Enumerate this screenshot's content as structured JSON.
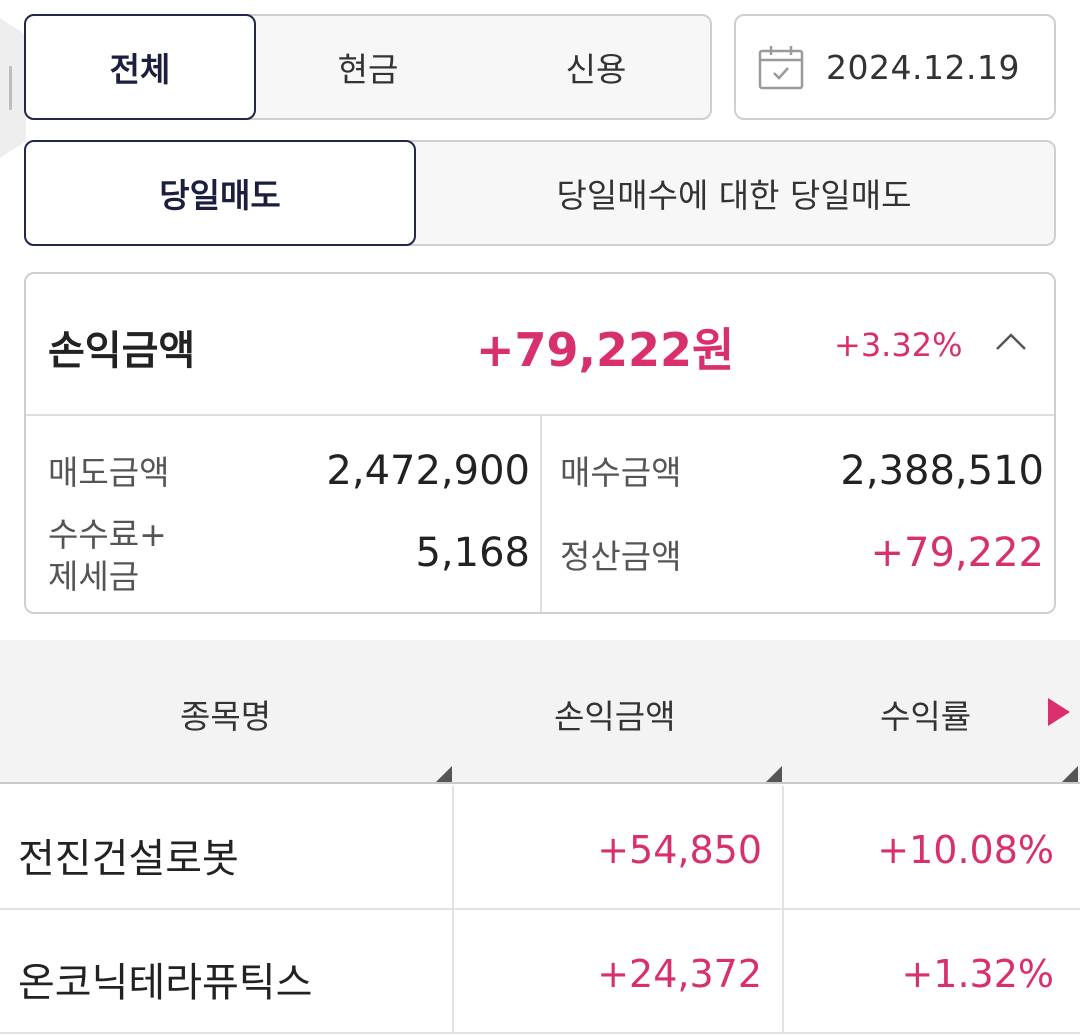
{
  "tabs_type": {
    "items": [
      "전체",
      "현금",
      "신용"
    ],
    "active": 0
  },
  "date": {
    "icon": "calendar-icon",
    "value": "2024.12.19"
  },
  "tabs_sell": {
    "items": [
      "당일매도",
      "당일매수에 대한 당일매도"
    ],
    "active": 0
  },
  "summary": {
    "title": "손익금액",
    "amount": "+79,222원",
    "rate": "+3.32%",
    "expand_icon": "chevron-up-icon",
    "left": {
      "sell_label": "매도금액",
      "sell_value": "2,472,900",
      "fee_label_line1": "수수료+",
      "fee_label_line2": "제세금",
      "fee_value": "5,168"
    },
    "right": {
      "buy_label": "매수금액",
      "buy_value": "2,388,510",
      "settle_label": "정산금액",
      "settle_value": "+79,222"
    }
  },
  "table": {
    "headers": [
      "종목명",
      "손익금액",
      "수익률"
    ],
    "rows": [
      {
        "name": "전진건설로봇",
        "amount": "+54,850",
        "rate": "+10.08%"
      },
      {
        "name": "온코닉테라퓨틱스",
        "amount": "+24,372",
        "rate": "+1.32%"
      }
    ]
  },
  "colors": {
    "accent_positive": "#d8306e",
    "active_border": "#22264a"
  }
}
